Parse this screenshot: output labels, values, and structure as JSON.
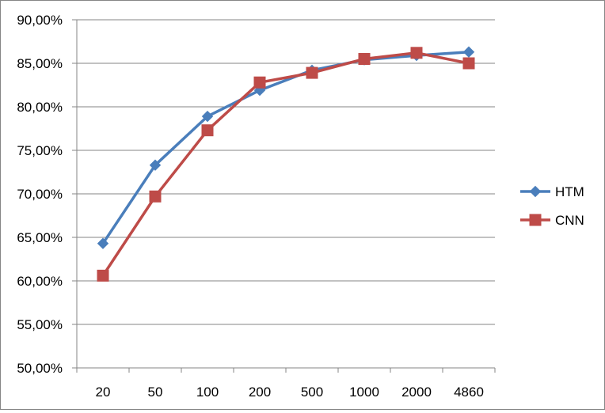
{
  "chart_data": {
    "type": "line",
    "title": "",
    "xlabel": "",
    "ylabel": "",
    "categories": [
      "20",
      "50",
      "100",
      "200",
      "500",
      "1000",
      "2000",
      "4860"
    ],
    "y_ticks": [
      "50,00%",
      "55,00%",
      "60,00%",
      "65,00%",
      "70,00%",
      "75,00%",
      "80,00%",
      "85,00%",
      "90,00%"
    ],
    "ylim": [
      50,
      90
    ],
    "grid": "horizontal",
    "legend_position": "right",
    "series": [
      {
        "name": "HTM",
        "color": "#4a7ebb",
        "marker": "diamond",
        "values": [
          64.3,
          73.3,
          78.9,
          81.9,
          84.2,
          85.4,
          85.9,
          86.3
        ]
      },
      {
        "name": "CNN",
        "color": "#be4b48",
        "marker": "square",
        "values": [
          60.6,
          69.7,
          77.3,
          82.8,
          83.9,
          85.5,
          86.2,
          85.0
        ]
      }
    ]
  }
}
